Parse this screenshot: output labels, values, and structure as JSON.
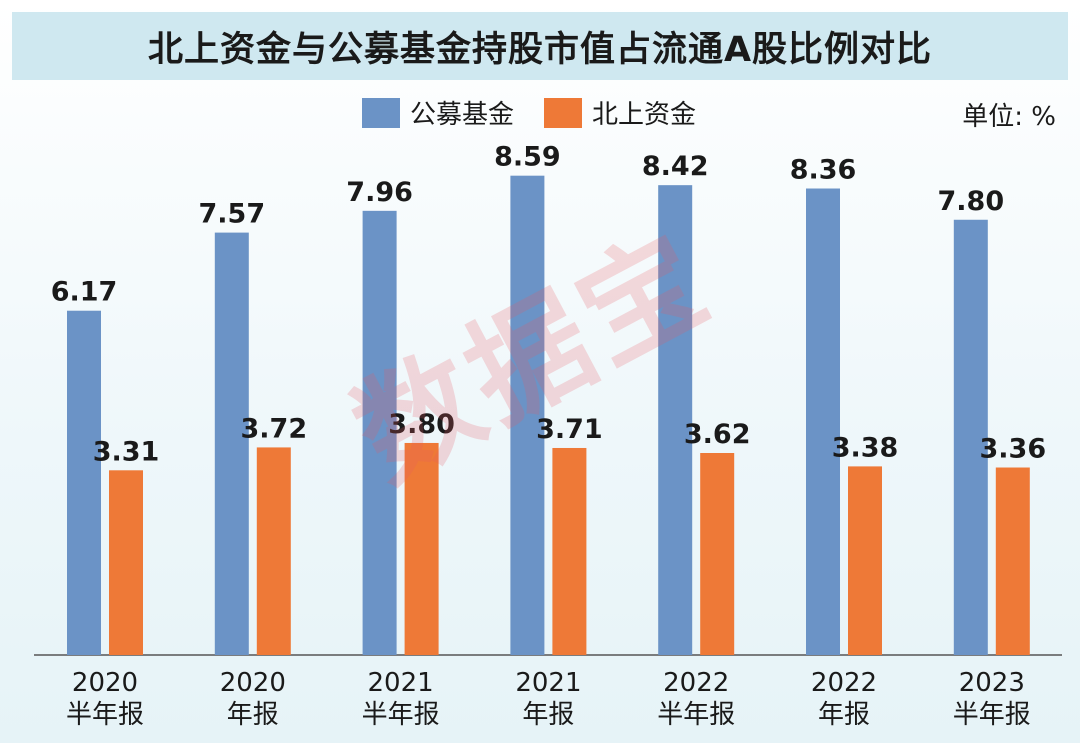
{
  "title": "北上资金与公募基金持股市值占流通A股比例对比",
  "unit_label": "单位: %",
  "watermark": "数据宝",
  "colors": {
    "fund": "#6b93c6",
    "northbound": "#ee7937",
    "title_bg": "#cfe8f0",
    "axis": "#555555"
  },
  "chart_data": {
    "type": "bar",
    "title": "北上资金与公募基金持股市值占流通A股比例对比",
    "ylabel": "单位: %",
    "ylim": [
      0,
      10
    ],
    "grid": false,
    "legend_position": "top",
    "categories": [
      [
        "2020",
        "半年报"
      ],
      [
        "2020",
        "年报"
      ],
      [
        "2021",
        "半年报"
      ],
      [
        "2021",
        "年报"
      ],
      [
        "2022",
        "半年报"
      ],
      [
        "2022",
        "年报"
      ],
      [
        "2023",
        "半年报"
      ]
    ],
    "series": [
      {
        "name": "公募基金",
        "color": "#6b93c6",
        "values": [
          6.17,
          7.57,
          7.96,
          8.59,
          8.42,
          8.36,
          7.8
        ],
        "labels": [
          "6.17",
          "7.57",
          "7.96",
          "8.59",
          "8.42",
          "8.36",
          "7.80"
        ]
      },
      {
        "name": "北上资金",
        "color": "#ee7937",
        "values": [
          3.31,
          3.72,
          3.8,
          3.71,
          3.62,
          3.38,
          3.36
        ],
        "labels": [
          "3.31",
          "3.72",
          "3.80",
          "3.71",
          "3.62",
          "3.38",
          "3.36"
        ]
      }
    ]
  }
}
